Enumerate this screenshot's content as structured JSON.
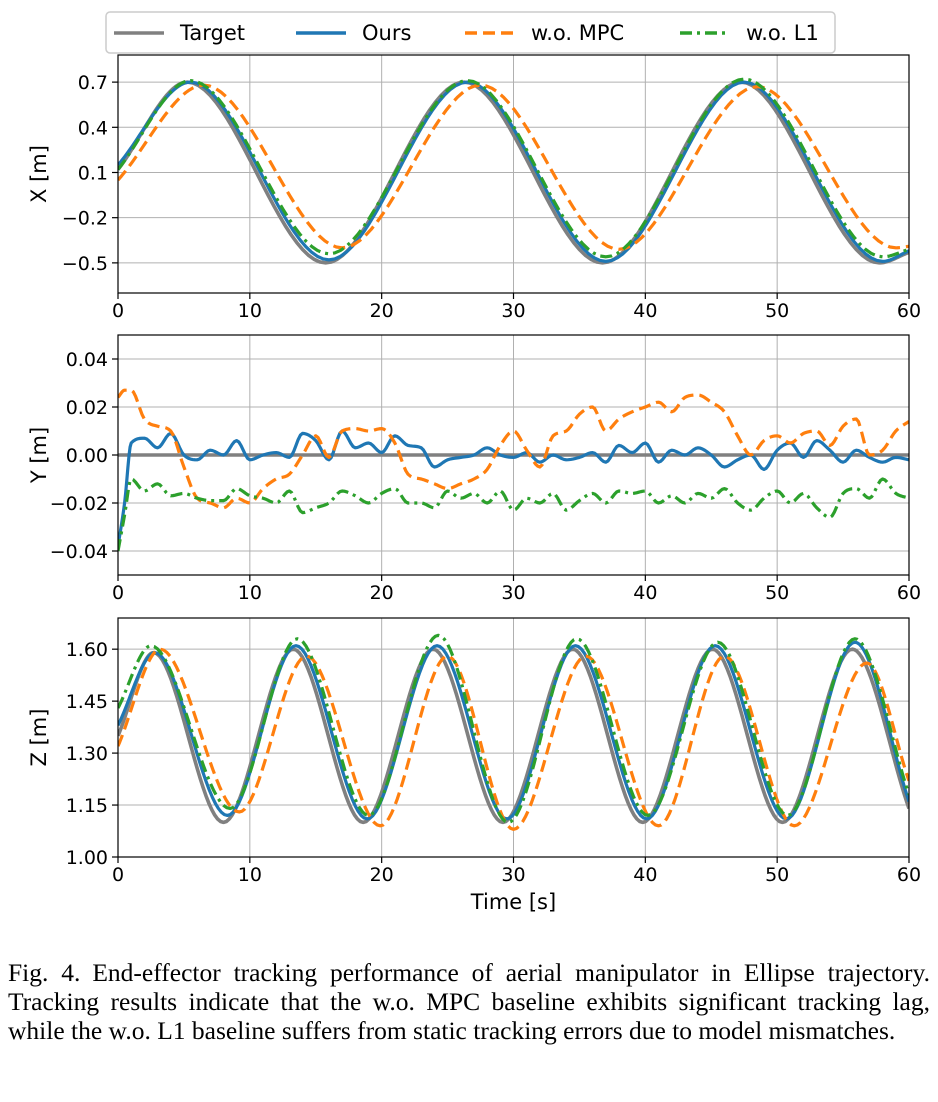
{
  "chart_data": {
    "type": "line",
    "legend": {
      "placement": "top-center",
      "entries": [
        {
          "name": "Target",
          "color": "#808080",
          "style": "solid"
        },
        {
          "name": "Ours",
          "color": "#1f77b4",
          "style": "solid"
        },
        {
          "name": "w.o. MPC",
          "color": "#ff7f0e",
          "style": "dashed"
        },
        {
          "name": "w.o. L1",
          "color": "#2ca02c",
          "style": "dashdot"
        }
      ]
    },
    "xlabel": "Time [s]",
    "xlim": [
      0,
      60
    ],
    "xticks": [
      0,
      10,
      20,
      30,
      40,
      50,
      60
    ],
    "grid": true,
    "subplots": [
      {
        "id": "x",
        "ylabel": "X [m]",
        "ylim": [
          -0.7,
          0.88
        ],
        "yticks": [
          0.7,
          0.4,
          0.1,
          -0.2,
          -0.5
        ],
        "ytick_labels": [
          "0.7",
          "0.4",
          "0.1",
          "−0.2",
          "−0.5"
        ],
        "series": {
          "Target": {
            "t": [
              0,
              5.25,
              15.75,
              26.25,
              36.75,
              47.25,
              57.75,
              60
            ],
            "v": [
              0.12,
              0.7,
              -0.5,
              0.7,
              -0.5,
              0.7,
              -0.5,
              -0.43
            ]
          },
          "Ours": {
            "t": [
              0,
              5.5,
              16.0,
              26.5,
              37.0,
              47.5,
              58.0,
              60
            ],
            "v": [
              0.15,
              0.7,
              -0.48,
              0.7,
              -0.49,
              0.7,
              -0.49,
              -0.42
            ]
          },
          "w.o. MPC": {
            "t": [
              0,
              6.5,
              17.0,
              27.5,
              38.0,
              48.5,
              59.0,
              60
            ],
            "v": [
              0.05,
              0.68,
              -0.4,
              0.68,
              -0.41,
              0.67,
              -0.4,
              -0.39
            ]
          },
          "w.o. L1": {
            "t": [
              0,
              5.5,
              16.0,
              26.5,
              37.0,
              47.5,
              58.0,
              60
            ],
            "v": [
              0.12,
              0.71,
              -0.44,
              0.71,
              -0.46,
              0.72,
              -0.46,
              -0.41
            ]
          }
        }
      },
      {
        "id": "y",
        "ylabel": "Y [m]",
        "ylim": [
          -0.05,
          0.05
        ],
        "yticks": [
          0.04,
          0.02,
          0.0,
          -0.02,
          -0.04
        ],
        "ytick_labels": [
          "0.04",
          "0.02",
          "0.00",
          "−0.02",
          "−0.04"
        ],
        "series": {
          "Target": {
            "t": [
              0,
              60
            ],
            "v": [
              0.0,
              0.0
            ]
          },
          "Ours": {
            "t": [
              0,
              0.5,
              1,
              2,
              3,
              4,
              5,
              6,
              7,
              8,
              9,
              10,
              11,
              12,
              13,
              14,
              15,
              16,
              17,
              18,
              19,
              20,
              21,
              22,
              23,
              24,
              25,
              26,
              27,
              28,
              29,
              30,
              31,
              32,
              33,
              34,
              35,
              36,
              37,
              38,
              39,
              40,
              41,
              42,
              43,
              44,
              45,
              46,
              47,
              48,
              49,
              50,
              51,
              52,
              53,
              54,
              55,
              56,
              57,
              58,
              59,
              60
            ],
            "v": [
              -0.038,
              -0.02,
              0.005,
              0.007,
              0.003,
              0.009,
              0.0,
              -0.002,
              0.002,
              0.0,
              0.006,
              -0.002,
              0.0,
              0.001,
              -0.001,
              0.009,
              0.006,
              -0.002,
              0.01,
              0.003,
              0.005,
              0.001,
              0.008,
              0.004,
              0.003,
              -0.005,
              -0.002,
              -0.001,
              0.0,
              0.003,
              0.0,
              -0.001,
              0.001,
              -0.003,
              0.0,
              -0.002,
              -0.001,
              0.001,
              -0.003,
              0.004,
              0.001,
              0.005,
              -0.003,
              0.002,
              0.0,
              0.003,
              0.0,
              -0.005,
              -0.002,
              0.0,
              -0.006,
              0.002,
              0.005,
              -0.001,
              0.006,
              0.002,
              -0.003,
              0.002,
              -0.001,
              -0.003,
              -0.001,
              -0.002
            ]
          },
          "w.o. MPC": {
            "t": [
              0,
              0.5,
              1,
              2,
              3,
              4,
              5,
              6,
              7,
              8,
              9,
              10,
              11,
              12,
              13,
              14,
              15,
              16,
              17,
              18,
              19,
              20,
              21,
              22,
              23,
              24,
              25,
              26,
              27,
              28,
              29,
              30,
              31,
              32,
              33,
              34,
              35,
              36,
              37,
              38,
              39,
              40,
              41,
              42,
              43,
              44,
              45,
              46,
              47,
              48,
              49,
              50,
              51,
              52,
              53,
              54,
              55,
              56,
              57,
              58,
              59,
              60
            ],
            "v": [
              0.024,
              0.027,
              0.027,
              0.015,
              0.012,
              0.01,
              -0.005,
              -0.018,
              -0.02,
              -0.022,
              -0.018,
              -0.02,
              -0.014,
              -0.01,
              -0.008,
              0.0,
              0.008,
              -0.001,
              0.01,
              0.011,
              0.01,
              0.011,
              0.005,
              -0.008,
              -0.01,
              -0.012,
              -0.014,
              -0.012,
              -0.01,
              -0.006,
              0.004,
              0.01,
              0.002,
              -0.005,
              0.008,
              0.01,
              0.017,
              0.02,
              0.01,
              0.015,
              0.018,
              0.02,
              0.022,
              0.018,
              0.024,
              0.025,
              0.022,
              0.018,
              0.008,
              0.0,
              0.006,
              0.008,
              0.005,
              0.009,
              0.01,
              0.004,
              0.012,
              0.015,
              0.0,
              0.002,
              0.01,
              0.014
            ]
          },
          "w.o. L1": {
            "t": [
              0,
              0.5,
              1,
              2,
              3,
              4,
              5,
              6,
              7,
              8,
              9,
              10,
              11,
              12,
              13,
              14,
              15,
              16,
              17,
              18,
              19,
              20,
              21,
              22,
              23,
              24,
              25,
              26,
              27,
              28,
              29,
              30,
              31,
              32,
              33,
              34,
              35,
              36,
              37,
              38,
              39,
              40,
              41,
              42,
              43,
              44,
              45,
              46,
              47,
              48,
              49,
              50,
              51,
              52,
              53,
              54,
              55,
              56,
              57,
              58,
              59,
              60
            ],
            "v": [
              -0.04,
              -0.025,
              -0.01,
              -0.015,
              -0.012,
              -0.017,
              -0.016,
              -0.018,
              -0.019,
              -0.019,
              -0.014,
              -0.017,
              -0.018,
              -0.02,
              -0.015,
              -0.024,
              -0.022,
              -0.02,
              -0.015,
              -0.017,
              -0.02,
              -0.016,
              -0.014,
              -0.02,
              -0.02,
              -0.022,
              -0.015,
              -0.018,
              -0.016,
              -0.02,
              -0.015,
              -0.023,
              -0.018,
              -0.02,
              -0.016,
              -0.023,
              -0.019,
              -0.016,
              -0.02,
              -0.015,
              -0.016,
              -0.015,
              -0.02,
              -0.017,
              -0.02,
              -0.016,
              -0.018,
              -0.014,
              -0.02,
              -0.023,
              -0.018,
              -0.015,
              -0.02,
              -0.016,
              -0.022,
              -0.026,
              -0.016,
              -0.014,
              -0.018,
              -0.01,
              -0.016,
              -0.018
            ]
          }
        }
      },
      {
        "id": "z",
        "ylabel": "Z [m]",
        "ylim": [
          1.0,
          1.69
        ],
        "yticks": [
          1.6,
          1.45,
          1.3,
          1.15,
          1.0
        ],
        "ytick_labels": [
          "1.60",
          "1.45",
          "1.30",
          "1.15",
          "1.00"
        ],
        "series": {
          "Target": {
            "t": [
              0,
              2.7,
              8.0,
              13.3,
              18.6,
              23.9,
              29.2,
              34.5,
              39.8,
              45.1,
              50.4,
              55.7,
              60
            ],
            "v": [
              1.35,
              1.59,
              1.1,
              1.6,
              1.1,
              1.6,
              1.1,
              1.6,
              1.1,
              1.6,
              1.1,
              1.6,
              1.14
            ]
          },
          "Ours": {
            "t": [
              0,
              2.8,
              8.3,
              13.5,
              18.9,
              24.2,
              29.5,
              34.7,
              40.1,
              45.3,
              50.7,
              55.9,
              60
            ],
            "v": [
              1.38,
              1.59,
              1.12,
              1.61,
              1.11,
              1.61,
              1.11,
              1.61,
              1.11,
              1.61,
              1.11,
              1.62,
              1.16
            ]
          },
          "w.o. MPC": {
            "t": [
              0,
              3.2,
              9.2,
              14.3,
              19.9,
              25.0,
              30.0,
              35.5,
              41.0,
              46.0,
              51.3,
              56.8,
              60
            ],
            "v": [
              1.32,
              1.6,
              1.13,
              1.58,
              1.09,
              1.58,
              1.08,
              1.58,
              1.09,
              1.58,
              1.09,
              1.56,
              1.22
            ]
          },
          "w.o. L1": {
            "t": [
              0,
              2.5,
              8.5,
              13.6,
              19.0,
              24.3,
              29.6,
              34.8,
              40.2,
              45.5,
              50.8,
              55.9,
              60
            ],
            "v": [
              1.43,
              1.61,
              1.14,
              1.63,
              1.12,
              1.64,
              1.1,
              1.63,
              1.12,
              1.62,
              1.12,
              1.63,
              1.18
            ]
          }
        }
      }
    ]
  },
  "caption": {
    "label": "Fig. 4.",
    "text": "End-effector tracking performance of aerial manipulator in Ellipse trajectory. Tracking results indicate that the w.o. MPC baseline exhibits significant tracking lag, while the w.o. L1 baseline suffers from static tracking errors due to model mismatches."
  }
}
